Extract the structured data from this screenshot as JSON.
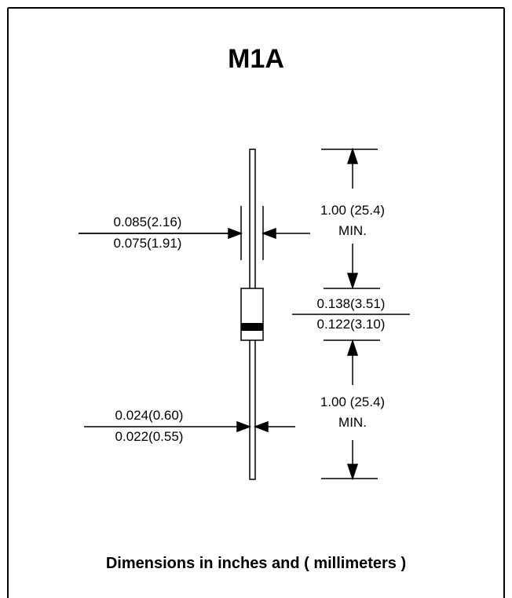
{
  "title": "M1A",
  "dimensions": {
    "body_diameter": {
      "max": "0.085(2.16)",
      "min": "0.075(1.91)"
    },
    "lead_length_top": {
      "line1": "1.00 (25.4)",
      "line2": "MIN."
    },
    "body_length": {
      "max": "0.138(3.51)",
      "min": "0.122(3.10)"
    },
    "lead_length_bottom": {
      "line1": "1.00 (25.4)",
      "line2": "MIN."
    },
    "lead_diameter": {
      "max": "0.024(0.60)",
      "min": "0.022(0.55)"
    }
  },
  "footer": "Dimensions in inches and ( millimeters )"
}
